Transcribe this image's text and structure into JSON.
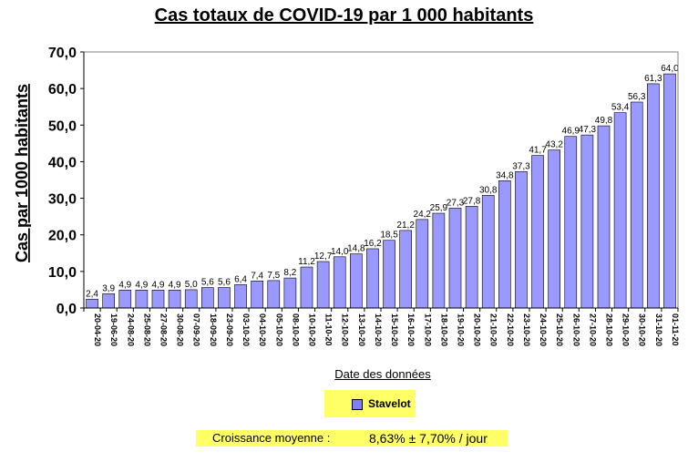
{
  "chart_data": {
    "type": "bar",
    "title": "Cas totaux de COVID-19 par 1 000 habitants",
    "xlabel": "Date des données",
    "ylabel": "Cas par 1000 habitants",
    "ylim": [
      0,
      70
    ],
    "yticks": [
      "0,0",
      "10,0",
      "20,0",
      "30,0",
      "40,0",
      "50,0",
      "60,0",
      "70,0"
    ],
    "grid": false,
    "legend_position": "bottom",
    "categories": [
      "20-04-20",
      "19-06-20",
      "24-08-20",
      "25-08-20",
      "27-08-20",
      "30-08-20",
      "07-09-20",
      "18-09-20",
      "23-09-20",
      "03-10-20",
      "04-10-20",
      "05-10-20",
      "08-10-20",
      "10-10-20",
      "11-10-20",
      "12-10-20",
      "13-10-20",
      "14-10-20",
      "15-10-20",
      "16-10-20",
      "17-10-20",
      "18-10-20",
      "19-10-20",
      "20-10-20",
      "21-10-20",
      "22-10-20",
      "23-10-20",
      "24-10-20",
      "25-10-20",
      "26-10-20",
      "27-10-20",
      "28-10-20",
      "29-10-20",
      "30-10-20",
      "31-10-20",
      "01-11-20"
    ],
    "series": [
      {
        "name": "Stavelot",
        "color": "#9999ff",
        "values": [
          2.4,
          3.9,
          4.9,
          4.9,
          4.9,
          4.9,
          5.0,
          5.6,
          5.6,
          6.4,
          7.4,
          7.5,
          8.2,
          11.2,
          12.7,
          14.0,
          14.8,
          16.2,
          18.5,
          21.2,
          24.2,
          25.9,
          27.3,
          27.8,
          30.8,
          34.8,
          37.3,
          41.7,
          43.2,
          46.9,
          47.3,
          49.8,
          53.4,
          56.3,
          61.3,
          64.0
        ],
        "labels": [
          "2,4",
          "3,9",
          "4,9",
          "4,9",
          "4,9",
          "4,9",
          "5,0",
          "5,6",
          "5,6",
          "6,4",
          "7,4",
          "7,5",
          "8,2",
          "11,2",
          "12,7",
          "14,0",
          "14,8",
          "16,2",
          "18,5",
          "21,2",
          "24,2",
          "25,9",
          "27,3",
          "27,8",
          "30,8",
          "34,8",
          "37,3",
          "41,7",
          "43,2",
          "46,9",
          "47,3",
          "49,8",
          "53,4",
          "56,3",
          "61,3",
          "64,0"
        ]
      }
    ]
  },
  "growth": {
    "label": "Croissance moyenne :",
    "value": "8,63%  ± 7,70% / jour"
  },
  "colors": {
    "bar": "#9999ff",
    "bar_border": "#000000",
    "highlight": "#ffff66"
  }
}
